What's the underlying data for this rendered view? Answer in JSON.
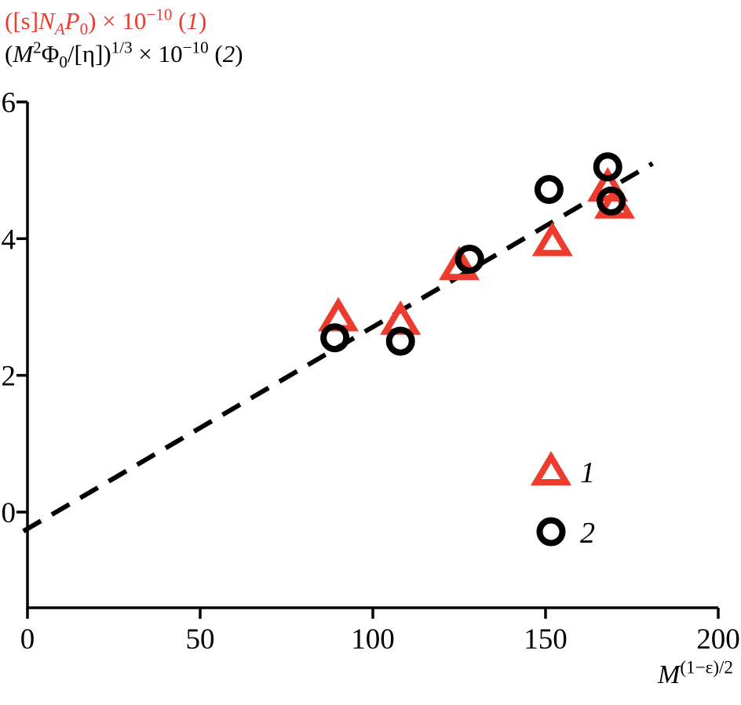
{
  "chart_data": {
    "type": "scatter",
    "title_lines": [
      {
        "html": "([s]<i>N</i><sub><i>A</i></sub><i>P</i><sub>0</sub>) &#215; 10<sup>&#8722;10</sup> (<i>1</i>)",
        "color": "#ed3b2e"
      },
      {
        "html": "(<i>M</i><sup>2</sup>&#934;<sub>0</sub>/[&#951;])<sup>1/3</sup> &#215; 10<sup>&#8722;10</sup> (<i>2</i>)",
        "color": "#000000"
      }
    ],
    "xlabel_html": "<i>M</i><sup>(1&#8722;&#949;)/2</sup>",
    "xlim": [
      0,
      200
    ],
    "ylim": [
      -1.4,
      6
    ],
    "xticks": [
      0,
      50,
      100,
      150,
      200
    ],
    "yticks": [
      0,
      2,
      4,
      6
    ],
    "grid": false,
    "trendline": {
      "style": "dashed",
      "color": "#000000",
      "x1": -1.2,
      "y1": -0.28,
      "x2": 181,
      "y2": 5.1
    },
    "series": [
      {
        "name": "1",
        "marker": "triangle",
        "color": "#ed3b2e",
        "points": [
          [
            90,
            2.85
          ],
          [
            108,
            2.8
          ],
          [
            125,
            3.6
          ],
          [
            152,
            3.95
          ],
          [
            168,
            4.75
          ],
          [
            170,
            4.5
          ]
        ]
      },
      {
        "name": "2",
        "marker": "circle",
        "color": "#000000",
        "points": [
          [
            89,
            2.55
          ],
          [
            108,
            2.5
          ],
          [
            128,
            3.7
          ],
          [
            151,
            4.72
          ],
          [
            168,
            5.05
          ],
          [
            169,
            4.55
          ]
        ]
      }
    ],
    "legend": {
      "position": "lower right",
      "items": [
        {
          "label": "1",
          "marker": "triangle"
        },
        {
          "label": "2",
          "marker": "circle"
        }
      ]
    }
  }
}
